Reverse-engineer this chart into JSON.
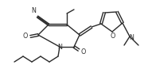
{
  "bg_color": "#ffffff",
  "line_color": "#2a2a2a",
  "line_width": 1.0,
  "font_size": 5.8,
  "fig_width": 1.86,
  "fig_height": 0.92,
  "dpi": 100,
  "xlim": [
    0,
    186
  ],
  "ylim": [
    0,
    92
  ]
}
